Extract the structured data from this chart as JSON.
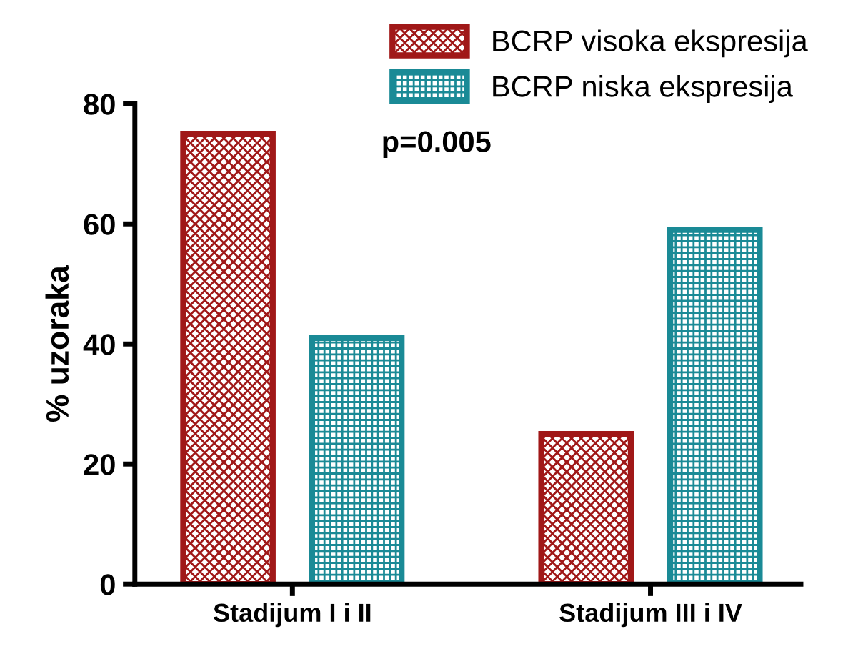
{
  "chart_data": {
    "type": "bar",
    "categories": [
      "Stadijum I i II",
      "Stadijum III i IV"
    ],
    "ylabel": "% uzoraka",
    "annotations": [
      "p=0.005"
    ],
    "series": [
      {
        "name": "BCRP visoka ekspresija",
        "color": "#a01818",
        "values": [
          75,
          25
        ]
      },
      {
        "name": "BCRP niska ekspresija",
        "color": "#1a8a96",
        "values": [
          41,
          59
        ]
      }
    ],
    "ylim": [
      0,
      80
    ],
    "yticks": [
      0,
      20,
      40,
      60,
      80
    ],
    "legend": "top right",
    "grid": false
  }
}
